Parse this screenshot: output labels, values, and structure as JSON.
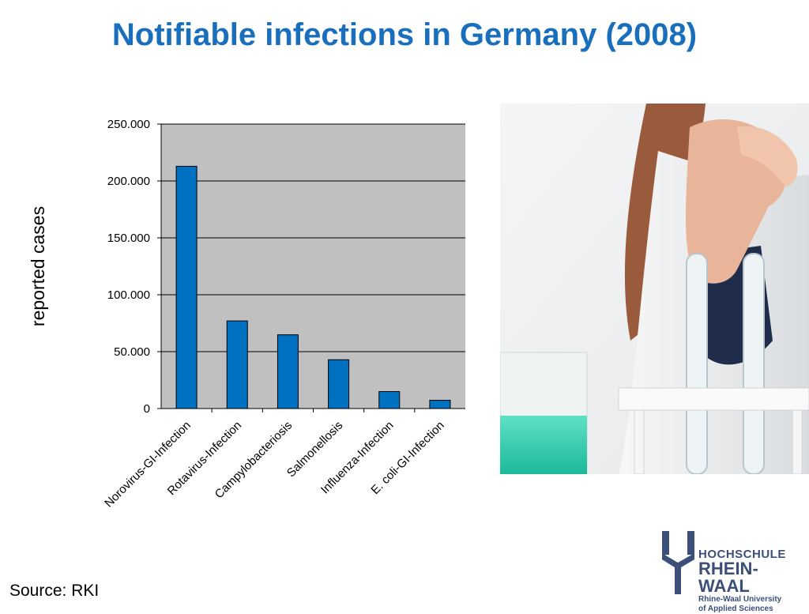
{
  "slide": {
    "title": "Notifiable infections in Germany (2008)",
    "source": "Source: RKI"
  },
  "logo": {
    "line1": "HOCHSCHULE",
    "line2": "RHEIN-WAAL",
    "line3": "Rhine-Waal University",
    "line4": "of Applied Sciences"
  },
  "colors": {
    "title": "#1a6fbd",
    "bar": "#0070c0",
    "plot_background": "#c0c0c0",
    "logo": "#3b4f78"
  },
  "chart_data": {
    "type": "bar",
    "title": "",
    "xlabel": "",
    "ylabel": "reported cases",
    "categories": [
      "Norovirus-GI-Infection",
      "Rotavirus-Infection",
      "Campylobacteriosis",
      "Salmonellosis",
      "Influenza-Infection",
      "E. coli-GI-Infection"
    ],
    "values": [
      212900,
      77000,
      64800,
      42900,
      14900,
      7300
    ],
    "ylim": [
      0,
      250000
    ],
    "yticks": [
      0,
      50000,
      100000,
      150000,
      200000,
      250000
    ],
    "ytick_labels": [
      "0",
      "50.000",
      "100.000",
      "150.000",
      "200.000",
      "250.000"
    ],
    "grid": true,
    "legend": "none"
  }
}
